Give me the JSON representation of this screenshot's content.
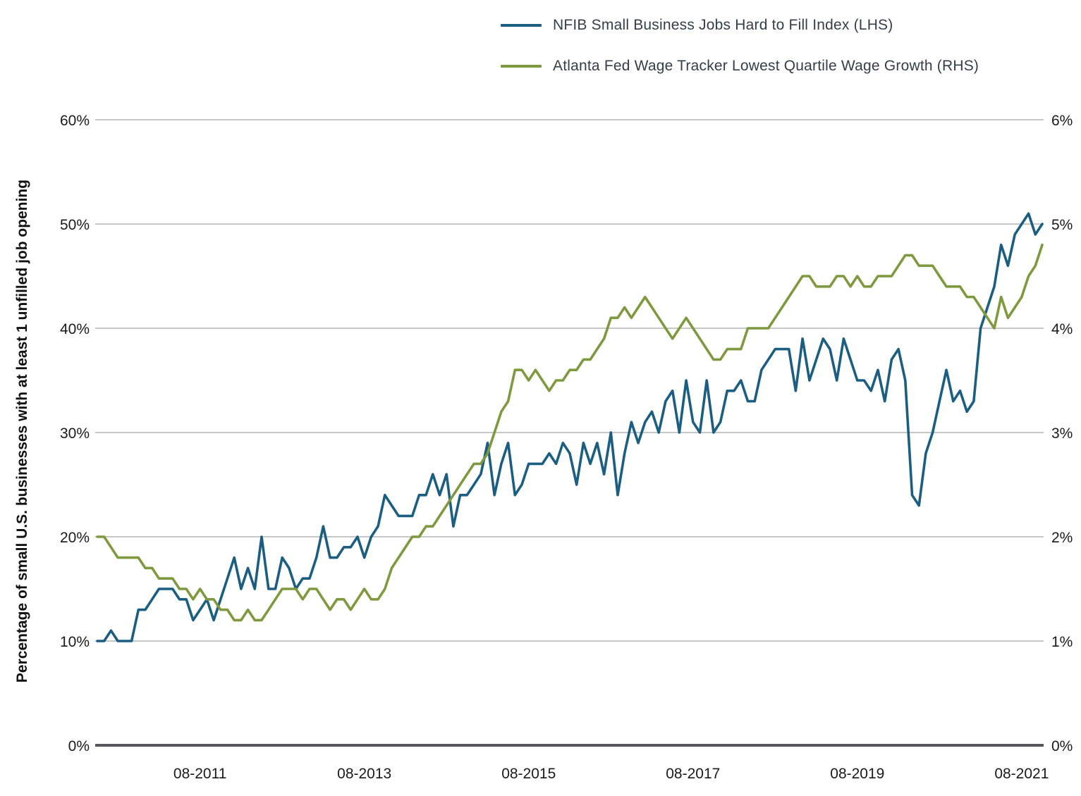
{
  "chart_data": {
    "type": "line",
    "title": "",
    "grid": "horizontal",
    "legend_position": "top-center",
    "x_tick_labels": [
      "08-2011",
      "08-2013",
      "08-2015",
      "08-2017",
      "08-2019",
      "08-2021"
    ],
    "x_tick_indices": [
      15,
      39,
      63,
      87,
      111,
      135
    ],
    "x_start": "05-2010",
    "x_end": "11-2021",
    "left_axis": {
      "label": "Percentage of small U.S. businesses with at least 1 unfilled job opening",
      "ticks": [
        "0%",
        "10%",
        "20%",
        "30%",
        "40%",
        "50%",
        "60%"
      ],
      "min": 0,
      "max": 60
    },
    "right_axis": {
      "ticks": [
        "0%",
        "1%",
        "2%",
        "3%",
        "4%",
        "5%",
        "6%"
      ],
      "min": 0,
      "max": 6
    },
    "colors": {
      "nfib_blue": "#1b5e82",
      "wage_green": "#7f993f",
      "gridline": "#c6c7c8",
      "axis_line": "#55565a"
    },
    "series": [
      {
        "name": "NFIB Small Business Jobs Hard to Fill Index (LHS)",
        "axis": "left",
        "color": "#1b5e82",
        "values": [
          10,
          10,
          11,
          10,
          10,
          10,
          13,
          13,
          14,
          15,
          15,
          15,
          14,
          14,
          12,
          13,
          14,
          12,
          14,
          16,
          18,
          15,
          17,
          15,
          20,
          15,
          15,
          18,
          17,
          15,
          16,
          16,
          18,
          21,
          18,
          18,
          19,
          19,
          20,
          18,
          20,
          21,
          24,
          23,
          22,
          22,
          22,
          24,
          24,
          26,
          24,
          26,
          21,
          24,
          24,
          25,
          26,
          29,
          24,
          27,
          29,
          24,
          25,
          27,
          27,
          27,
          28,
          27,
          29,
          28,
          25,
          29,
          27,
          29,
          26,
          30,
          24,
          28,
          31,
          29,
          31,
          32,
          30,
          33,
          34,
          30,
          35,
          31,
          30,
          35,
          30,
          31,
          34,
          34,
          35,
          33,
          33,
          36,
          37,
          38,
          38,
          38,
          34,
          39,
          35,
          37,
          39,
          38,
          35,
          39,
          37,
          35,
          35,
          34,
          36,
          33,
          37,
          38,
          35,
          24,
          23,
          28,
          30,
          33,
          36,
          33,
          34,
          32,
          33,
          40,
          42,
          44,
          48,
          46,
          49,
          50,
          51,
          49,
          50
        ]
      },
      {
        "name": "Atlanta Fed Wage Tracker Lowest Quartile Wage Growth (RHS)",
        "axis": "right",
        "color": "#7f993f",
        "values": [
          2.0,
          2.0,
          1.9,
          1.8,
          1.8,
          1.8,
          1.8,
          1.7,
          1.7,
          1.6,
          1.6,
          1.6,
          1.5,
          1.5,
          1.4,
          1.5,
          1.4,
          1.4,
          1.3,
          1.3,
          1.2,
          1.2,
          1.3,
          1.2,
          1.2,
          1.3,
          1.4,
          1.5,
          1.5,
          1.5,
          1.4,
          1.5,
          1.5,
          1.4,
          1.3,
          1.4,
          1.4,
          1.3,
          1.4,
          1.5,
          1.4,
          1.4,
          1.5,
          1.7,
          1.8,
          1.9,
          2.0,
          2.0,
          2.1,
          2.1,
          2.2,
          2.3,
          2.4,
          2.5,
          2.6,
          2.7,
          2.7,
          2.8,
          3.0,
          3.2,
          3.3,
          3.6,
          3.6,
          3.5,
          3.6,
          3.5,
          3.4,
          3.5,
          3.5,
          3.6,
          3.6,
          3.7,
          3.7,
          3.8,
          3.9,
          4.1,
          4.1,
          4.2,
          4.1,
          4.2,
          4.3,
          4.2,
          4.1,
          4.0,
          3.9,
          4.0,
          4.1,
          4.0,
          3.9,
          3.8,
          3.7,
          3.7,
          3.8,
          3.8,
          3.8,
          4.0,
          4.0,
          4.0,
          4.0,
          4.1,
          4.2,
          4.3,
          4.4,
          4.5,
          4.5,
          4.4,
          4.4,
          4.4,
          4.5,
          4.5,
          4.4,
          4.5,
          4.4,
          4.4,
          4.5,
          4.5,
          4.5,
          4.6,
          4.7,
          4.7,
          4.6,
          4.6,
          4.6,
          4.5,
          4.4,
          4.4,
          4.4,
          4.3,
          4.3,
          4.2,
          4.1,
          4.0,
          4.3,
          4.1,
          4.2,
          4.3,
          4.5,
          4.6,
          4.8
        ]
      }
    ]
  }
}
